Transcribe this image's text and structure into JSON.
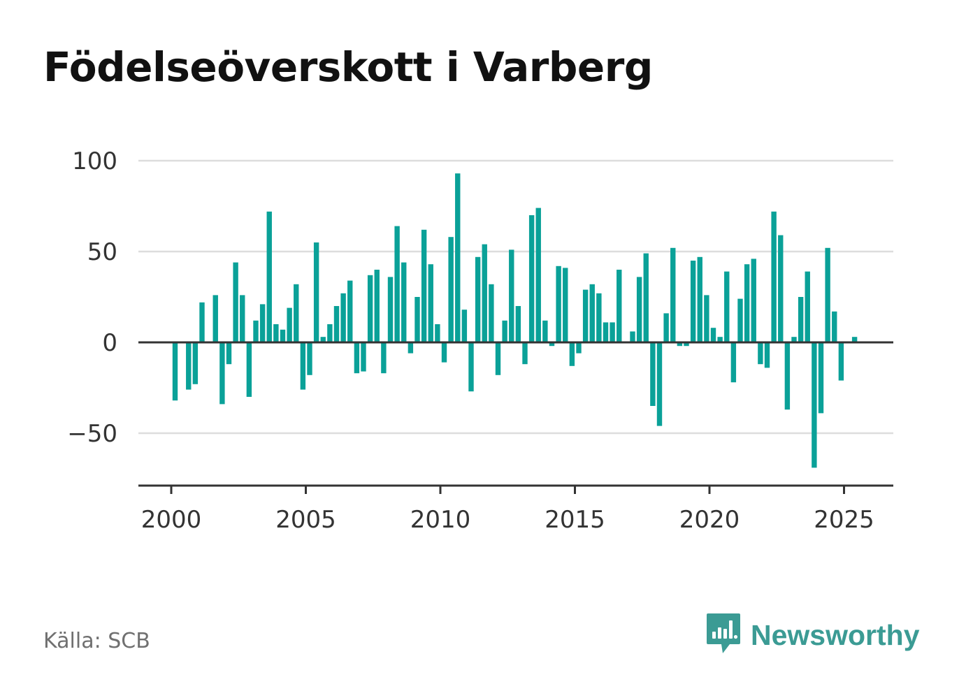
{
  "title": "Födelseöverskott i Varberg",
  "source": "Källa: SCB",
  "brand": {
    "name": "Newsworthy",
    "icon": "newsworthy-logo-icon",
    "color": "#3b9b94"
  },
  "colors": {
    "bar": "#0aa198",
    "grid": "#dddddd",
    "axis": "#333333",
    "label": "#333333"
  },
  "chart_data": {
    "type": "bar",
    "title": "Födelseöverskott i Varberg",
    "xlabel": "",
    "ylabel": "",
    "frequency": "quarterly",
    "xlim": [
      1999.75,
      2027.75
    ],
    "ylim": [
      -80,
      100
    ],
    "x_ticks": [
      2000,
      2005,
      2010,
      2015,
      2020,
      2025
    ],
    "x_tick_labels": [
      "2000",
      "2005",
      "2010",
      "2015",
      "2020",
      "2025"
    ],
    "y_ticks": [
      -50,
      0,
      50,
      100
    ],
    "y_tick_labels": [
      "−50",
      "0",
      "50",
      "100"
    ],
    "grid": true,
    "legend": "none",
    "x": [
      2000.0,
      2000.25,
      2000.5,
      2000.75,
      2001.0,
      2001.25,
      2001.5,
      2001.75,
      2002.0,
      2002.25,
      2002.5,
      2002.75,
      2003.0,
      2003.25,
      2003.5,
      2003.75,
      2004.0,
      2004.25,
      2004.5,
      2004.75,
      2005.0,
      2005.25,
      2005.5,
      2005.75,
      2006.0,
      2006.25,
      2006.5,
      2006.75,
      2007.0,
      2007.25,
      2007.5,
      2007.75,
      2008.0,
      2008.25,
      2008.5,
      2008.75,
      2009.0,
      2009.25,
      2009.5,
      2009.75,
      2010.0,
      2010.25,
      2010.5,
      2010.75,
      2011.0,
      2011.25,
      2011.5,
      2011.75,
      2012.0,
      2012.25,
      2012.5,
      2012.75,
      2013.0,
      2013.25,
      2013.5,
      2013.75,
      2014.0,
      2014.25,
      2014.5,
      2014.75,
      2015.0,
      2015.25,
      2015.5,
      2015.75,
      2016.0,
      2016.25,
      2016.5,
      2016.75,
      2017.0,
      2017.25,
      2017.5,
      2017.75,
      2018.0,
      2018.25,
      2018.5,
      2018.75,
      2019.0,
      2019.25,
      2019.5,
      2019.75,
      2020.0,
      2020.25,
      2020.5,
      2020.75,
      2021.0,
      2021.25,
      2021.5,
      2021.75,
      2022.0,
      2022.25,
      2022.5,
      2022.75,
      2023.0,
      2023.25,
      2023.5,
      2023.75,
      2024.0,
      2024.25,
      2024.5,
      2024.75,
      2025.0,
      2025.25
    ],
    "values": [
      -32,
      0,
      -26,
      -23,
      22,
      0,
      26,
      -34,
      -12,
      44,
      26,
      -30,
      12,
      21,
      72,
      10,
      7,
      19,
      32,
      -26,
      -18,
      55,
      3,
      10,
      20,
      27,
      34,
      -17,
      -16,
      37,
      40,
      -17,
      36,
      64,
      44,
      -6,
      25,
      62,
      43,
      10,
      -11,
      58,
      93,
      18,
      -27,
      47,
      54,
      32,
      -18,
      12,
      51,
      20,
      -12,
      70,
      74,
      12,
      -2,
      42,
      41,
      -13,
      -6,
      29,
      32,
      27,
      11,
      11,
      40,
      0,
      6,
      36,
      49,
      -35,
      -46,
      16,
      52,
      -2,
      -2,
      45,
      47,
      26,
      8,
      3,
      39,
      -22,
      24,
      43,
      46,
      -12,
      -14,
      72,
      59,
      -37,
      3,
      25,
      39,
      -69,
      -39,
      52,
      17,
      -21,
      0,
      3
    ]
  }
}
